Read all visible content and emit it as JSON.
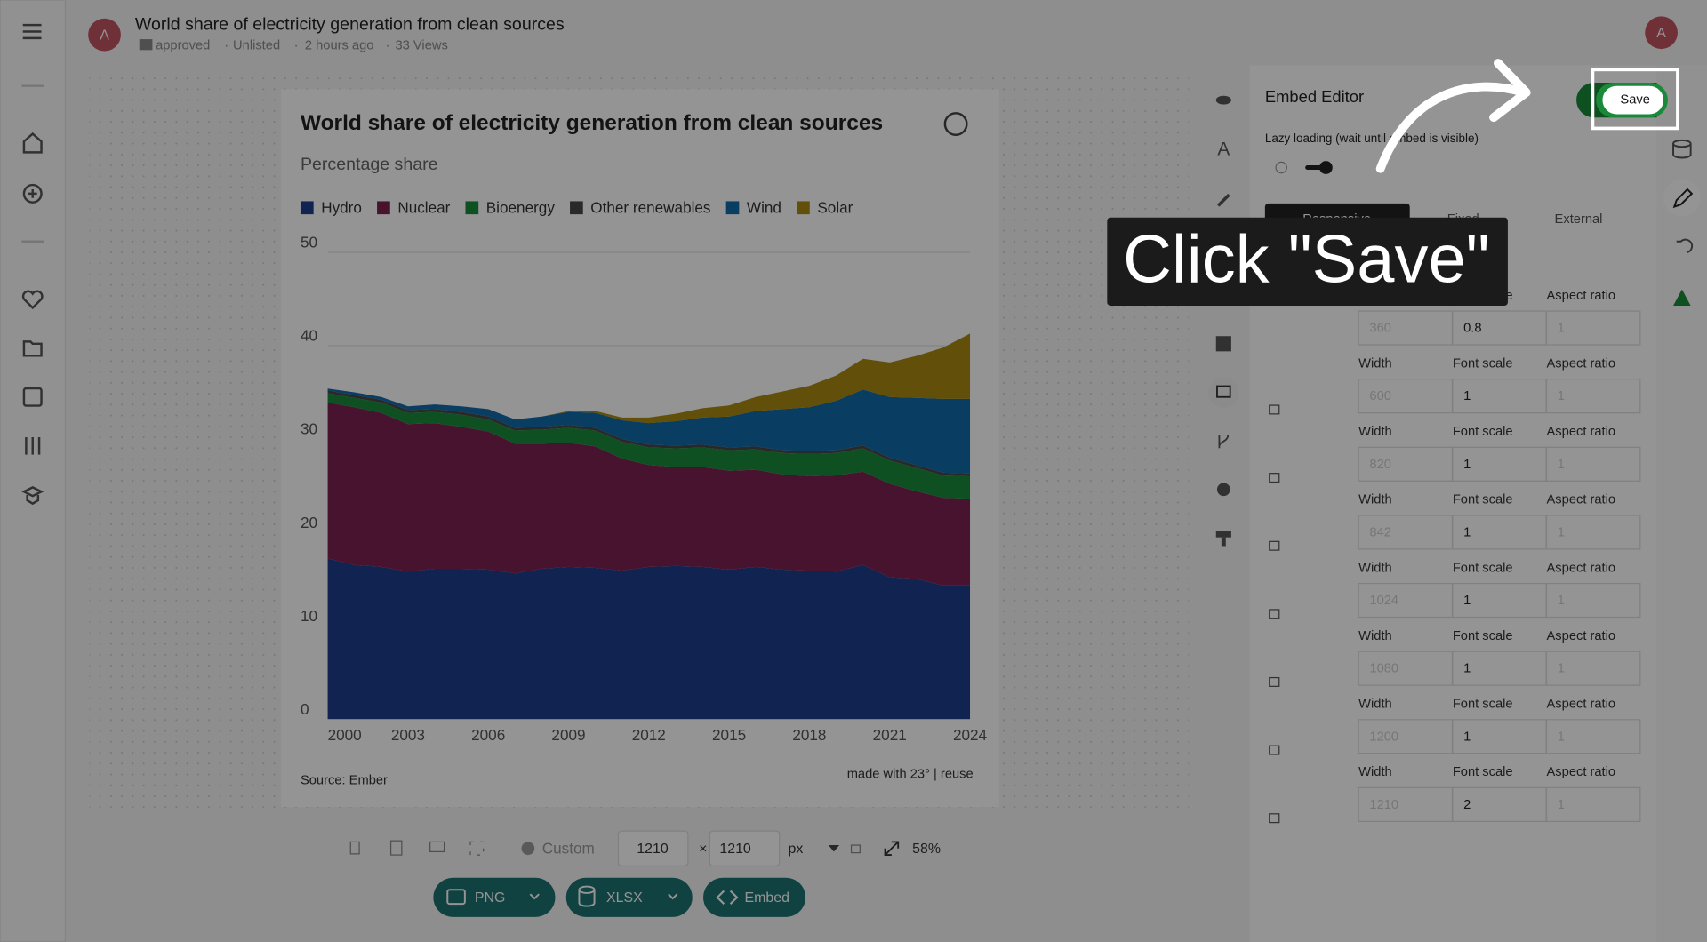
{
  "header": {
    "avatar": "A",
    "title": "World share of electricity generation from clean sources",
    "status": "approved",
    "visibility": "Unlisted",
    "time": "2 hours ago",
    "views": "33 Views"
  },
  "chart": {
    "type": "area",
    "stacked": true,
    "title": "World share of electricity generation from clean sources",
    "subtitle": "Percentage share",
    "x": [
      2000,
      2001,
      2002,
      2003,
      2004,
      2005,
      2006,
      2007,
      2008,
      2009,
      2010,
      2011,
      2012,
      2013,
      2014,
      2015,
      2016,
      2017,
      2018,
      2019,
      2020,
      2021,
      2022,
      2023,
      2024
    ],
    "xlim": [
      2000,
      2024
    ],
    "xticks": [
      2000,
      2003,
      2006,
      2009,
      2012,
      2015,
      2018,
      2021,
      2024
    ],
    "ylim": [
      0,
      50
    ],
    "yticks": [
      0,
      10,
      20,
      30,
      40,
      50
    ],
    "grid": true,
    "series": [
      {
        "name": "Hydro",
        "color": "#1e3f8c",
        "values": [
          17.2,
          16.5,
          16.3,
          15.8,
          16.1,
          16.1,
          16.0,
          15.6,
          16.1,
          16.3,
          16.2,
          15.9,
          16.3,
          16.4,
          16.3,
          16.0,
          16.3,
          16.0,
          15.9,
          15.8,
          16.5,
          15.2,
          15.0,
          14.3,
          14.3
        ]
      },
      {
        "name": "Nuclear",
        "color": "#7c2152",
        "values": [
          16.7,
          16.9,
          16.5,
          15.8,
          15.6,
          15.2,
          14.8,
          13.9,
          13.4,
          13.3,
          13.0,
          12.0,
          10.9,
          10.6,
          10.7,
          10.6,
          10.4,
          10.2,
          10.1,
          10.3,
          10.0,
          10.0,
          9.4,
          9.4,
          9.3
        ]
      },
      {
        "name": "Bioenergy",
        "color": "#1b8b3c",
        "values": [
          1.0,
          1.0,
          1.1,
          1.2,
          1.2,
          1.3,
          1.3,
          1.4,
          1.5,
          1.6,
          1.7,
          1.8,
          1.9,
          2.0,
          2.1,
          2.2,
          2.2,
          2.3,
          2.4,
          2.4,
          2.5,
          2.5,
          2.5,
          2.4,
          2.4
        ]
      },
      {
        "name": "Other renewables",
        "color": "#474747",
        "values": [
          0.3,
          0.3,
          0.3,
          0.3,
          0.3,
          0.3,
          0.3,
          0.3,
          0.3,
          0.3,
          0.3,
          0.3,
          0.3,
          0.3,
          0.3,
          0.3,
          0.3,
          0.3,
          0.3,
          0.3,
          0.3,
          0.3,
          0.3,
          0.3,
          0.3
        ]
      },
      {
        "name": "Wind",
        "color": "#1169aa",
        "values": [
          0.2,
          0.3,
          0.3,
          0.4,
          0.5,
          0.6,
          0.8,
          0.9,
          1.1,
          1.4,
          1.6,
          2.0,
          2.3,
          2.6,
          2.9,
          3.3,
          3.8,
          4.4,
          4.7,
          5.3,
          6.0,
          6.5,
          7.2,
          7.9,
          8.0
        ]
      },
      {
        "name": "Solar",
        "color": "#a98b12",
        "values": [
          0,
          0,
          0,
          0,
          0,
          0,
          0,
          0,
          0,
          0.1,
          0.2,
          0.3,
          0.6,
          0.8,
          1.0,
          1.2,
          1.5,
          1.9,
          2.3,
          2.7,
          3.3,
          3.7,
          4.5,
          5.5,
          7.0
        ]
      }
    ],
    "source": "Source: Ember",
    "credit": "made with 23° | reuse"
  },
  "toolbar": {
    "preset": "Custom",
    "width": "1210",
    "height": "1210",
    "unit": "px",
    "zoom": "58%",
    "buttons": [
      "PNG",
      "XLSX",
      "Embed"
    ]
  },
  "embed_editor": {
    "title": "Embed Editor",
    "lazy_loading": "Lazy loading (wait until embed is visible)",
    "tabs": [
      "Responsive",
      "Fixed",
      "External"
    ],
    "columns": [
      "Width",
      "Font scale",
      "Aspect ratio"
    ],
    "rows": [
      {
        "width": "360",
        "font_scale": "0.8",
        "aspect_ratio": "1"
      },
      {
        "width": "600",
        "font_scale": "1",
        "aspect_ratio": "1"
      },
      {
        "width": "820",
        "font_scale": "1",
        "aspect_ratio": "1"
      },
      {
        "width": "842",
        "font_scale": "1",
        "aspect_ratio": "1"
      },
      {
        "width": "1024",
        "font_scale": "1",
        "aspect_ratio": "1"
      },
      {
        "width": "1080",
        "font_scale": "1",
        "aspect_ratio": "1"
      },
      {
        "width": "1200",
        "font_scale": "1",
        "aspect_ratio": "1"
      },
      {
        "width": "1210",
        "font_scale": "2",
        "aspect_ratio": "1"
      }
    ],
    "save": "Save"
  },
  "callout": "Click \"Save\""
}
